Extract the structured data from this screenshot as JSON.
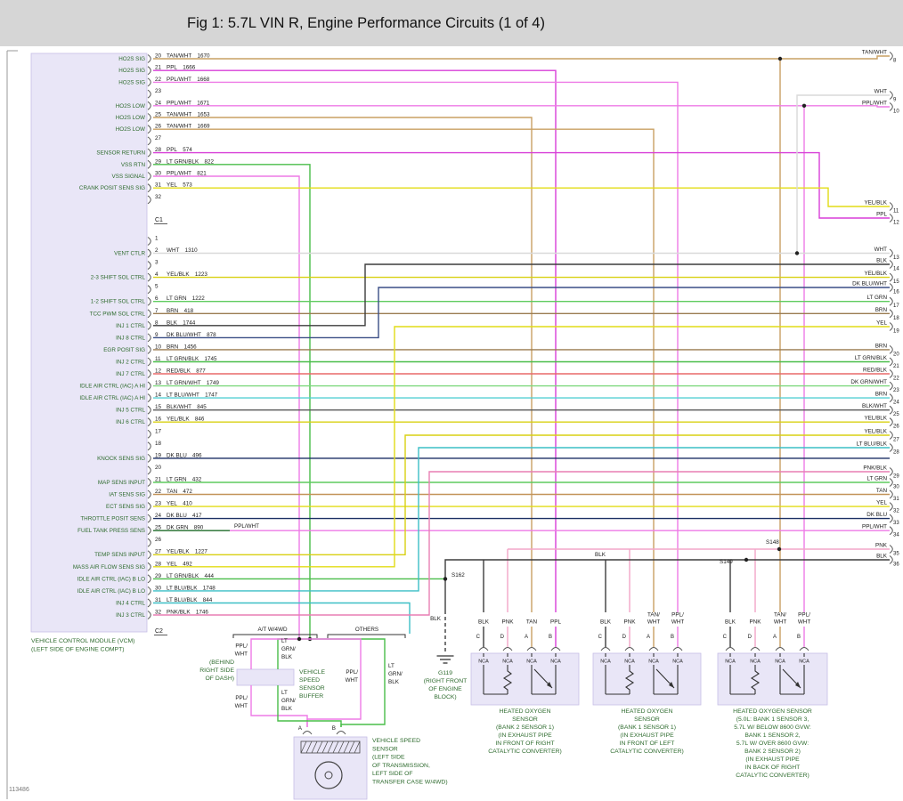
{
  "title": "Fig 1: 5.7L VIN R, Engine Performance Circuits (1 of 4)",
  "doc_number": "113486",
  "colors": {
    "titlebar_bg": "#d6d6d6",
    "label_green": "#2e6b2e",
    "text_black": "#1a1a1a",
    "box_fill": "#e9e6f7",
    "box_edge": "#c6bfe6",
    "TAN/WHT": "#c9a063",
    "TAN": "#c39459",
    "PPL": "#d83fd8",
    "PPL/WHT": "#ee7ae6",
    "WHT": "#d9d9d9",
    "YEL": "#e2dc16",
    "YEL/BLK": "#d8d012",
    "LT GRN": "#5ecb5e",
    "LT GRN/BLK": "#49bd49",
    "LT GRN/WHT": "#7fd87f",
    "DK GRN": "#1f6b2a",
    "DK GRN/WHT": "#2f7d3a",
    "BRN": "#9a7b50",
    "BLK": "#3d3d3d",
    "BLK/WHT": "#5a5a5a",
    "DK BLU": "#1b2f63",
    "DK BLU/WHT": "#3a4e86",
    "LT BLU/WHT": "#53cfd4",
    "LT BLU/BLK": "#3cbfc6",
    "RED/BLK": "#e86a6a",
    "PNK": "#f2a6c8",
    "PNK/BLK": "#e87fb4"
  },
  "vcm": {
    "caption_lines": [
      "VEHICLE CONTROL MODULE (VCM)",
      "(LEFT SIDE OF ENGINE COMPT)"
    ],
    "connectors": [
      {
        "id": "C1",
        "pins": [
          {
            "pin": "20",
            "wire": "TAN/WHT",
            "circuit": "1670",
            "signal": "HO2S SIG"
          },
          {
            "pin": "21",
            "wire": "PPL",
            "circuit": "1666",
            "signal": "HO2S SIG"
          },
          {
            "pin": "22",
            "wire": "PPL/WHT",
            "circuit": "1668",
            "signal": "HO2S SIG"
          },
          {
            "pin": "23",
            "wire": "",
            "circuit": "",
            "signal": ""
          },
          {
            "pin": "24",
            "wire": "PPL/WHT",
            "circuit": "1671",
            "signal": "HO2S LOW"
          },
          {
            "pin": "25",
            "wire": "TAN/WHT",
            "circuit": "1653",
            "signal": "HO2S LOW"
          },
          {
            "pin": "26",
            "wire": "TAN/WHT",
            "circuit": "1669",
            "signal": "HO2S LOW"
          },
          {
            "pin": "27",
            "wire": "",
            "circuit": "",
            "signal": ""
          },
          {
            "pin": "28",
            "wire": "PPL",
            "circuit": "574",
            "signal": "SENSOR RETURN"
          },
          {
            "pin": "29",
            "wire": "LT GRN/BLK",
            "circuit": "822",
            "signal": "VSS RTN"
          },
          {
            "pin": "30",
            "wire": "PPL/WHT",
            "circuit": "821",
            "signal": "VSS SIGNAL"
          },
          {
            "pin": "31",
            "wire": "YEL",
            "circuit": "573",
            "signal": "CRANK POSIT SENS SIG"
          },
          {
            "pin": "32",
            "wire": "",
            "circuit": "",
            "signal": ""
          }
        ]
      },
      {
        "id": "C2",
        "pins": [
          {
            "pin": "1",
            "wire": "",
            "circuit": "",
            "signal": ""
          },
          {
            "pin": "2",
            "wire": "WHT",
            "circuit": "1310",
            "signal": "VENT CTLR"
          },
          {
            "pin": "3",
            "wire": "",
            "circuit": "",
            "signal": ""
          },
          {
            "pin": "4",
            "wire": "YEL/BLK",
            "circuit": "1223",
            "signal": "2-3 SHIFT SOL CTRL"
          },
          {
            "pin": "5",
            "wire": "",
            "circuit": "",
            "signal": ""
          },
          {
            "pin": "6",
            "wire": "LT GRN",
            "circuit": "1222",
            "signal": "1-2 SHIFT SOL CTRL"
          },
          {
            "pin": "7",
            "wire": "BRN",
            "circuit": "418",
            "signal": "TCC PWM SOL CTRL"
          },
          {
            "pin": "8",
            "wire": "BLK",
            "circuit": "1744",
            "signal": "INJ 1 CTRL"
          },
          {
            "pin": "9",
            "wire": "DK BLU/WHT",
            "circuit": "878",
            "signal": "INJ 8 CTRL"
          },
          {
            "pin": "10",
            "wire": "BRN",
            "circuit": "1456",
            "signal": "EGR POSIT SIG"
          },
          {
            "pin": "11",
            "wire": "LT GRN/BLK",
            "circuit": "1745",
            "signal": "INJ 2 CTRL"
          },
          {
            "pin": "12",
            "wire": "RED/BLK",
            "circuit": "877",
            "signal": "INJ 7 CTRL"
          },
          {
            "pin": "13",
            "wire": "LT GRN/WHT",
            "circuit": "1749",
            "signal": "IDLE AIR CTRL (IAC) A HI"
          },
          {
            "pin": "14",
            "wire": "LT BLU/WHT",
            "circuit": "1747",
            "signal": "IDLE AIR CTRL (IAC) A HI"
          },
          {
            "pin": "15",
            "wire": "BLK/WHT",
            "circuit": "845",
            "signal": "INJ 5 CTRL"
          },
          {
            "pin": "16",
            "wire": "YEL/BLK",
            "circuit": "846",
            "signal": "INJ 6 CTRL"
          },
          {
            "pin": "17",
            "wire": "",
            "circuit": "",
            "signal": ""
          },
          {
            "pin": "18",
            "wire": "",
            "circuit": "",
            "signal": ""
          },
          {
            "pin": "19",
            "wire": "DK BLU",
            "circuit": "496",
            "signal": "KNOCK SENS SIG"
          },
          {
            "pin": "20",
            "wire": "",
            "circuit": "",
            "signal": ""
          },
          {
            "pin": "21",
            "wire": "LT GRN",
            "circuit": "432",
            "signal": "MAP SENS INPUT"
          },
          {
            "pin": "22",
            "wire": "TAN",
            "circuit": "472",
            "signal": "IAT SENS SIG"
          },
          {
            "pin": "23",
            "wire": "YEL",
            "circuit": "410",
            "signal": "ECT SENS SIG"
          },
          {
            "pin": "24",
            "wire": "DK BLU",
            "circuit": "417",
            "signal": "THROTTLE POSIT SENS"
          },
          {
            "pin": "25",
            "wire": "DK GRN",
            "circuit": "890",
            "signal": "FUEL TANK PRESS SENS",
            "second_color": "PPL/WHT"
          },
          {
            "pin": "26",
            "wire": "",
            "circuit": "",
            "signal": ""
          },
          {
            "pin": "27",
            "wire": "YEL/BLK",
            "circuit": "1227",
            "signal": "TEMP SENS INPUT"
          },
          {
            "pin": "28",
            "wire": "YEL",
            "circuit": "492",
            "signal": "MASS AIR FLOW SENS SIG"
          },
          {
            "pin": "29",
            "wire": "LT GRN/BLK",
            "circuit": "444",
            "signal": "IDLE AIR CTRL (IAC) B LO"
          },
          {
            "pin": "30",
            "wire": "LT BLU/BLK",
            "circuit": "1748",
            "signal": "IDLE AIR CTRL (IAC) B LO"
          },
          {
            "pin": "31",
            "wire": "LT BLU/BLK",
            "circuit": "844",
            "signal": "INJ 4 CTRL"
          },
          {
            "pin": "32",
            "wire": "PNK/BLK",
            "circuit": "1746",
            "signal": "INJ 3 CTRL"
          }
        ]
      }
    ]
  },
  "right_terminals": [
    {
      "num": "8",
      "label": "TAN/WHT"
    },
    {
      "num": "9",
      "label": "WHT"
    },
    {
      "num": "10",
      "label": "PPL/WHT"
    },
    {
      "num": "11",
      "label": "YEL/BLK"
    },
    {
      "num": "12",
      "label": "PPL"
    },
    {
      "num": "13",
      "label": "WHT"
    },
    {
      "num": "14",
      "label": "BLK"
    },
    {
      "num": "15",
      "label": "YEL/BLK"
    },
    {
      "num": "16",
      "label": "DK BLU/WHT"
    },
    {
      "num": "17",
      "label": "LT GRN"
    },
    {
      "num": "18",
      "label": "BRN"
    },
    {
      "num": "19",
      "label": "YEL"
    },
    {
      "num": "20",
      "label": "BRN"
    },
    {
      "num": "21",
      "label": "LT GRN/BLK"
    },
    {
      "num": "22",
      "label": "RED/BLK"
    },
    {
      "num": "23",
      "label": "DK GRN/WHT"
    },
    {
      "num": "24",
      "label": "BRN"
    },
    {
      "num": "25",
      "label": "BLK/WHT"
    },
    {
      "num": "26",
      "label": "YEL/BLK"
    },
    {
      "num": "27",
      "label": "YEL/BLK"
    },
    {
      "num": "28",
      "label": "LT BLU/BLK"
    },
    {
      "num": "29",
      "label": "PNK/BLK"
    },
    {
      "num": "30",
      "label": "LT GRN"
    },
    {
      "num": "31",
      "label": "TAN"
    },
    {
      "num": "32",
      "label": "YEL"
    },
    {
      "num": "33",
      "label": "DK BLU"
    },
    {
      "num": "34",
      "label": "PPL/WHT"
    },
    {
      "num": "35",
      "label": "PNK"
    },
    {
      "num": "36",
      "label": "BLK"
    }
  ],
  "splices": [
    {
      "id": "S162"
    },
    {
      "id": "S148"
    },
    {
      "id": "S149"
    }
  ],
  "ground": {
    "id": "G119",
    "caption_lines": [
      "G119",
      "(RIGHT FRONT",
      "OF ENGINE",
      "BLOCK)"
    ],
    "wire_label": "BLK"
  },
  "bus_labels": {
    "ground_bus": "BLK"
  },
  "options_bracket": {
    "left": "A/T W/4WD",
    "right": "OTHERS"
  },
  "vss_buffer": {
    "caption_lines": [
      "VEHICLE",
      "SPEED",
      "SENSOR",
      "BUFFER"
    ],
    "location_lines": [
      "(BEHIND",
      "RIGHT SIDE",
      "OF DASH)"
    ],
    "wire_labels_top": [
      [
        "PPL/",
        "WHT"
      ],
      [
        "LT",
        "GRN/",
        "BLK"
      ]
    ],
    "wire_labels_bottom": [
      [
        "PPL/",
        "WHT"
      ],
      [
        "LT",
        "GRN/",
        "BLK"
      ]
    ],
    "others_wire_labels": [
      [
        "PPL/",
        "WHT"
      ],
      [
        "LT",
        "GRN/",
        "BLK"
      ]
    ]
  },
  "vss_sensor": {
    "pins": [
      "A",
      "B"
    ],
    "caption_lines": [
      "VEHICLE SPEED",
      "SENSOR",
      "(LEFT SIDE",
      "OF TRANSMISSION,",
      "LEFT SIDE OF",
      "TRANSFER CASE W/4WD)"
    ]
  },
  "o2_sensors": [
    {
      "nca": "NCA",
      "pins": [
        {
          "letter": "C",
          "color": "BLK"
        },
        {
          "letter": "D",
          "color": "PNK"
        },
        {
          "letter": "A",
          "color": "TAN"
        },
        {
          "letter": "B",
          "color": "PPL"
        }
      ],
      "caption_lines": [
        "HEATED OXYGEN",
        "SENSOR",
        "(BANK 2 SENSOR 1)",
        "(IN EXHAUST PIPE",
        "IN FRONT OF RIGHT",
        "CATALYTIC CONVERTER)"
      ]
    },
    {
      "nca": "NCA",
      "pins": [
        {
          "letter": "C",
          "color": "BLK"
        },
        {
          "letter": "D",
          "color": "PNK"
        },
        {
          "letter": "A",
          "color": "TAN/WHT"
        },
        {
          "letter": "B",
          "color": "PPL/WHT"
        }
      ],
      "caption_lines": [
        "HEATED OXYGEN",
        "SENSOR",
        "(BANK 1 SENSOR 1)",
        "(IN EXHAUST PIPE",
        "IN FRONT OF LEFT",
        "CATALYTIC CONVERTER)"
      ]
    },
    {
      "nca": "NCA",
      "pins": [
        {
          "letter": "C",
          "color": "BLK"
        },
        {
          "letter": "D",
          "color": "PNK"
        },
        {
          "letter": "A",
          "color": "TAN/WHT"
        },
        {
          "letter": "B",
          "color": "PPL/WHT"
        }
      ],
      "caption_lines": [
        "HEATED OXYGEN SENSOR",
        "(5.0L: BANK 1 SENSOR 3,",
        "5.7L W/ BELOW 8600 GVW:",
        "BANK 1 SENSOR 2,",
        "5.7L W/ OVER 8600 GVW:",
        "BANK 2 SENSOR 2)",
        "(IN EXHAUST PIPE",
        "IN BACK OF RIGHT",
        "CATALYTIC CONVERTER)"
      ]
    }
  ]
}
